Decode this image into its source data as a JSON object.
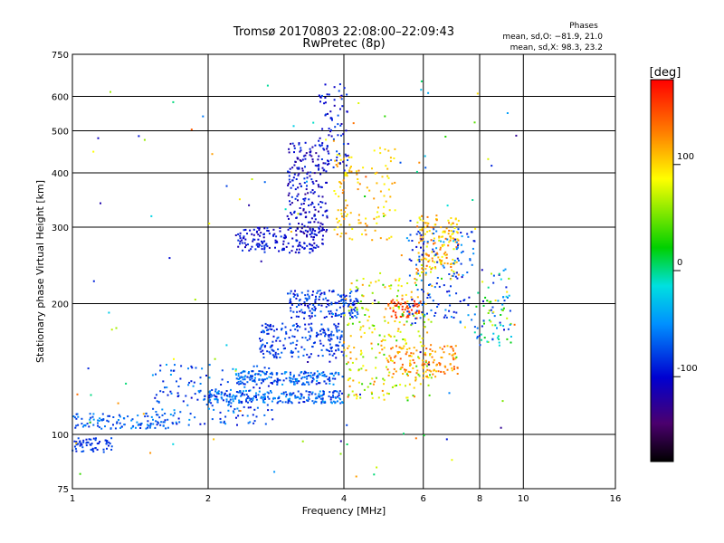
{
  "chart_data": {
    "type": "scatter",
    "title": "Tromsø 20170803 22:08:00–22:09:43",
    "subtitle": "RwPretec (8p)",
    "stats": {
      "heading": "Phases",
      "line_o": "mean, sd,O: −81.9, 21.0",
      "line_x": "mean, sd,X:  98.3, 23.2"
    },
    "xlabel": "Frequency [MHz]",
    "ylabel": "Stationary phase Virtual Height [km]",
    "xscale": "log",
    "yscale": "log",
    "xlim": [
      1,
      16
    ],
    "ylim": [
      75,
      750
    ],
    "xticks": [
      {
        "v": 1,
        "label": "1"
      },
      {
        "v": 2,
        "label": "2"
      },
      {
        "v": 4,
        "label": "4"
      },
      {
        "v": 6,
        "label": "6"
      },
      {
        "v": 8,
        "label": "8"
      },
      {
        "v": 10,
        "label": "10"
      },
      {
        "v": 16,
        "label": "16"
      }
    ],
    "yticks": [
      {
        "v": 75,
        "label": "75"
      },
      {
        "v": 100,
        "label": "100"
      },
      {
        "v": 200,
        "label": "200"
      },
      {
        "v": 300,
        "label": "300"
      },
      {
        "v": 400,
        "label": "400"
      },
      {
        "v": 500,
        "label": "500"
      },
      {
        "v": 600,
        "label": "600"
      },
      {
        "v": 750,
        "label": "750"
      }
    ],
    "grid": true,
    "colorbar": {
      "label": "[deg]",
      "range": [
        -180,
        180
      ],
      "ticks": [
        {
          "v": 100,
          "label": "100"
        },
        {
          "v": 0,
          "label": "0"
        },
        {
          "v": -100,
          "label": "-100"
        }
      ]
    },
    "clusters": [
      {
        "name": "E-low trace",
        "f": [
          1.0,
          1.25
        ],
        "h": [
          91,
          98
        ],
        "phase": [
          -95,
          -70
        ],
        "n": 60
      },
      {
        "name": "E-trace lower",
        "f": [
          1.0,
          1.7
        ],
        "h": [
          103,
          112
        ],
        "phase": [
          -90,
          -45
        ],
        "n": 110
      },
      {
        "name": "lower F ramp",
        "f": [
          1.5,
          2.8
        ],
        "h": [
          105,
          145
        ],
        "phase": [
          -100,
          -40
        ],
        "n": 170
      },
      {
        "name": "F band 122",
        "f": [
          2.0,
          4.0
        ],
        "h": [
          118,
          126
        ],
        "phase": [
          -95,
          -40
        ],
        "n": 220
      },
      {
        "name": "F band 135",
        "f": [
          2.3,
          3.9
        ],
        "h": [
          130,
          140
        ],
        "phase": [
          -95,
          -40
        ],
        "n": 180
      },
      {
        "name": "F band 160",
        "f": [
          2.6,
          4.0
        ],
        "h": [
          150,
          180
        ],
        "phase": [
          -100,
          -60
        ],
        "n": 200
      },
      {
        "name": "F band 195",
        "f": [
          3.0,
          4.3
        ],
        "h": [
          185,
          215
        ],
        "phase": [
          -110,
          -60
        ],
        "n": 170
      },
      {
        "name": "F2 O-trace lower",
        "f": [
          2.3,
          3.6
        ],
        "h": [
          262,
          300
        ],
        "phase": [
          -120,
          -80
        ],
        "n": 170
      },
      {
        "name": "F2 O-trace rise",
        "f": [
          3.0,
          3.7
        ],
        "h": [
          290,
          470
        ],
        "phase": [
          -130,
          -80
        ],
        "n": 200
      },
      {
        "name": "F2 O-cusp",
        "f": [
          3.5,
          4.1
        ],
        "h": [
          400,
          640
        ],
        "phase": [
          -120,
          -70
        ],
        "n": 80
      },
      {
        "name": "X-trace 300",
        "f": [
          3.8,
          5.2
        ],
        "h": [
          280,
          460
        ],
        "phase": [
          80,
          130
        ],
        "n": 120
      },
      {
        "name": "X-trace mid",
        "f": [
          4.0,
          6.3
        ],
        "h": [
          120,
          230
        ],
        "phase": [
          30,
          130
        ],
        "n": 240
      },
      {
        "name": "X red cluster",
        "f": [
          5.0,
          6.0
        ],
        "h": [
          185,
          205
        ],
        "phase": [
          140,
          170
        ],
        "n": 60
      },
      {
        "name": "X lower orange",
        "f": [
          5.0,
          7.2
        ],
        "h": [
          135,
          160
        ],
        "phase": [
          100,
          150
        ],
        "n": 120
      },
      {
        "name": "X upper 6-7 MHz",
        "f": [
          5.8,
          7.2
        ],
        "h": [
          230,
          320
        ],
        "phase": [
          70,
          150
        ],
        "n": 160
      },
      {
        "name": "O-trace 6-8 MHz",
        "f": [
          5.5,
          7.8
        ],
        "h": [
          180,
          300
        ],
        "phase": [
          -100,
          -40
        ],
        "n": 140
      },
      {
        "name": "high freq tail",
        "f": [
          7.8,
          9.4
        ],
        "h": [
          160,
          240
        ],
        "phase": [
          -110,
          100
        ],
        "n": 80
      },
      {
        "name": "scatter noise",
        "f": [
          1.0,
          10.0
        ],
        "h": [
          80,
          650
        ],
        "phase": [
          -130,
          150
        ],
        "n": 130
      }
    ]
  }
}
